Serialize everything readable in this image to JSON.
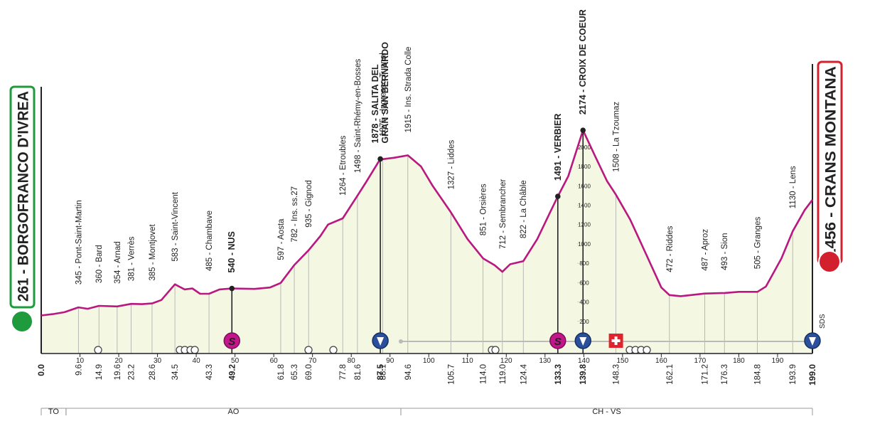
{
  "chart_data": {
    "type": "elevation-profile",
    "xlim": [
      0,
      199
    ],
    "ylim": [
      0,
      2300
    ],
    "xticks": [
      10,
      20,
      30,
      40,
      50,
      60,
      70,
      80,
      90,
      100,
      110,
      120,
      130,
      140,
      150,
      160,
      170,
      180,
      190
    ],
    "yticks": [
      200,
      400,
      600,
      800,
      1000,
      1200,
      1400,
      1600,
      1800,
      2000
    ],
    "line_color": "#b8187f",
    "fill_color": "#f4f7e2",
    "sprint_symbol": "S",
    "start": {
      "km": 0,
      "km_label": "0.0",
      "alt": 261,
      "label": "261 - BORGOFRANCO D'IVREA",
      "color": "#1f9a3c"
    },
    "finish": {
      "km": 199,
      "km_label": "199.0",
      "alt": 1456,
      "label": "1456 - CRANS MONTANA",
      "color": "#d2202f",
      "note": "SDS"
    },
    "profile": {
      "x": [
        0,
        3,
        6,
        9.6,
        12,
        14.9,
        19.6,
        23.2,
        26,
        28.6,
        31,
        34.5,
        37,
        39,
        41,
        43.3,
        46,
        49.2,
        55,
        59,
        61.8,
        65.3,
        69,
        72,
        74,
        77.8,
        81.6,
        84,
        87.5,
        88.1,
        91,
        94.6,
        98,
        101,
        105.7,
        110,
        114,
        117,
        119,
        121,
        124.4,
        128,
        131,
        133.3,
        136,
        139.8,
        143,
        146,
        148.3,
        152,
        156,
        160,
        162.1,
        165,
        171.2,
        176.3,
        180,
        184.8,
        187,
        191,
        193.9,
        197,
        199
      ],
      "y": [
        261,
        275,
        295,
        345,
        330,
        360,
        354,
        381,
        378,
        385,
        420,
        583,
        530,
        540,
        485,
        485,
        530,
        540,
        535,
        550,
        597,
        782,
        935,
        1080,
        1200,
        1264,
        1498,
        1650,
        1878,
        1875,
        1890,
        1915,
        1800,
        1600,
        1327,
        1050,
        851,
        780,
        712,
        790,
        822,
        1050,
        1300,
        1491,
        1700,
        2174,
        1900,
        1650,
        1508,
        1250,
        900,
        550,
        472,
        460,
        487,
        493,
        505,
        505,
        560,
        850,
        1130,
        1350,
        1456
      ]
    },
    "waypoints": [
      {
        "km": 9.6,
        "km_label": "9.6",
        "alt": 345,
        "label": "345 - Pont-Saint-Martin"
      },
      {
        "km": 14.9,
        "km_label": "14.9",
        "alt": 360,
        "label": "360 - Bard"
      },
      {
        "km": 19.6,
        "km_label": "19.6",
        "alt": 354,
        "label": "354 - Arnad"
      },
      {
        "km": 23.2,
        "km_label": "23.2",
        "alt": 381,
        "label": "381 - Verrès"
      },
      {
        "km": 28.6,
        "km_label": "28.6",
        "alt": 385,
        "label": "385 - Montjovet"
      },
      {
        "km": 34.5,
        "km_label": "34.5",
        "alt": 583,
        "label": "583 - Saint-Vincent"
      },
      {
        "km": 43.3,
        "km_label": "43.3",
        "alt": 485,
        "label": "485 - Chambave"
      },
      {
        "km": 49.2,
        "km_label": "49.2",
        "alt": 540,
        "label": "540 - NUS",
        "major": true,
        "icon": "sprint"
      },
      {
        "km": 61.8,
        "km_label": "61.8",
        "alt": 597,
        "label": "597 - Aosta"
      },
      {
        "km": 65.3,
        "km_label": "65.3",
        "alt": 782,
        "label": "782 - Ins. ss.27"
      },
      {
        "km": 69.0,
        "km_label": "69.0",
        "alt": 935,
        "label": "935 - Gignod"
      },
      {
        "km": 77.8,
        "km_label": "77.8",
        "alt": 1264,
        "label": "1264 - Etroubles"
      },
      {
        "km": 81.6,
        "km_label": "81.6",
        "alt": 1498,
        "label": "1498 - Saint-Rhémy-en-Bosses"
      },
      {
        "km": 87.5,
        "km_label": "87.5",
        "alt": 1878,
        "label": [
          "1878 - SALITA DEL",
          "GRAN SAN BERNARDO"
        ],
        "major": true,
        "icon": "kom"
      },
      {
        "km": 88.1,
        "km_label": "88.1",
        "alt": 1875,
        "label": "1875 - Ingresso Tunnel"
      },
      {
        "km": 94.6,
        "km_label": "94.6",
        "alt": 1915,
        "label": "1915 - Ins. Strada Colle"
      },
      {
        "km": 105.7,
        "km_label": "105.7",
        "alt": 1327,
        "label": "1327 - Liddes"
      },
      {
        "km": 114.0,
        "km_label": "114.0",
        "alt": 851,
        "label": "851 - Orsières"
      },
      {
        "km": 119.0,
        "km_label": "119.0",
        "alt": 712,
        "label": "712 - Sembrancher"
      },
      {
        "km": 124.4,
        "km_label": "124.4",
        "alt": 822,
        "label": "822 - La Châble"
      },
      {
        "km": 133.3,
        "km_label": "133.3",
        "alt": 1491,
        "label": "1491 - VERBIER",
        "major": true,
        "icon": "sprint"
      },
      {
        "km": 139.8,
        "km_label": "139.8",
        "alt": 2174,
        "label": "2174 - CROIX DE COEUR",
        "major": true,
        "icon": "kom"
      },
      {
        "km": 148.3,
        "km_label": "148.3",
        "alt": 1508,
        "label": "1508 - La Tzoumaz",
        "icon": "cross"
      },
      {
        "km": 162.1,
        "km_label": "162.1",
        "alt": 472,
        "label": "472 - Riddes"
      },
      {
        "km": 171.2,
        "km_label": "171.2",
        "alt": 487,
        "label": "487 - Aproz"
      },
      {
        "km": 176.3,
        "km_label": "176.3",
        "alt": 493,
        "label": "493 - Sion"
      },
      {
        "km": 184.8,
        "km_label": "184.8",
        "alt": 505,
        "label": "505 - Granges"
      },
      {
        "km": 193.9,
        "km_label": "193.9",
        "alt": 1130,
        "label": "1130 - Lens"
      }
    ],
    "regions": [
      {
        "label": "TO",
        "from": 0,
        "to": 6.4
      },
      {
        "label": "AO",
        "from": 6.4,
        "to": 92.8
      },
      {
        "label": "CH - VS",
        "from": 92.8,
        "to": 199
      }
    ]
  }
}
